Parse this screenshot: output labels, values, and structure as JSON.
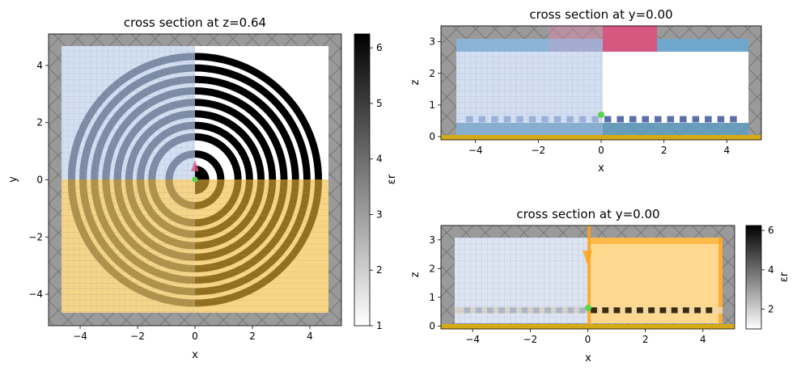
{
  "colors": {
    "pml_gray": "#8c8c8c",
    "grid_blue": "#b7c8e6",
    "source_yellow": "#f2c04d",
    "monitor_pink": "#d6577f",
    "monitor_blue": "#5f9ec7",
    "substrate_gold": "#d4aa18",
    "point_green": "#5cd14b",
    "orange": "#ffa11a"
  },
  "chart_data": [
    {
      "type": "heatmap",
      "title": "cross section at z=0.64",
      "xlabel": "x",
      "ylabel": "y",
      "xlim": [
        -5.1,
        5.1
      ],
      "ylim": [
        -5.1,
        5.1
      ],
      "xticks": [
        -4,
        -2,
        0,
        2,
        4
      ],
      "yticks": [
        -4,
        -2,
        0,
        2,
        4
      ],
      "grating_ring_radii": [
        0.9,
        1.5,
        1.9,
        2.3,
        2.7,
        3.1,
        3.5,
        3.9,
        4.3
      ],
      "grating_ring_width": 0.25,
      "colorbar": {
        "label": "εr",
        "ticks": [
          1,
          2,
          3,
          4,
          5,
          6
        ],
        "range": [
          1,
          6.25
        ]
      }
    },
    {
      "type": "heatmap",
      "title": "cross section at y=0.00",
      "xlabel": "x",
      "ylabel": "z",
      "xlim": [
        -5.1,
        5.1
      ],
      "ylim": [
        -0.1,
        3.5
      ],
      "xticks": [
        -4,
        -2,
        0,
        2,
        4
      ],
      "yticks": [
        0,
        1,
        2,
        3
      ]
    },
    {
      "type": "heatmap",
      "title": "cross section at y=0.00",
      "xlabel": "x",
      "ylabel": "z",
      "xlim": [
        -5.1,
        5.1
      ],
      "ylim": [
        -0.1,
        3.5
      ],
      "xticks": [
        -4,
        -2,
        0,
        2,
        4
      ],
      "yticks": [
        0,
        1,
        2,
        3
      ],
      "colorbar": {
        "label": "εr",
        "ticks": [
          2,
          4,
          6
        ],
        "range": [
          1,
          6.25
        ]
      }
    }
  ]
}
